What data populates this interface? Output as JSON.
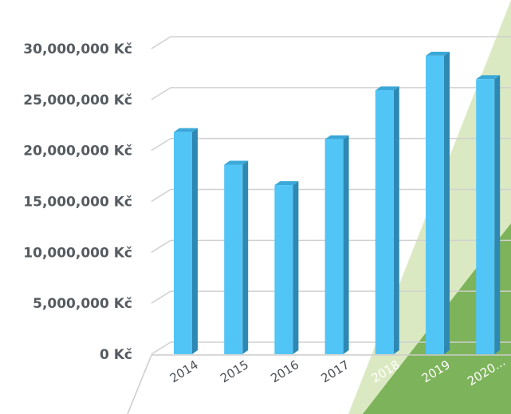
{
  "chart_data": {
    "type": "bar",
    "title": "",
    "xlabel": "",
    "ylabel": "",
    "categories": [
      "2014",
      "2015",
      "2016",
      "2017",
      "2018",
      "2019",
      "2020..."
    ],
    "values": [
      21800000,
      18600000,
      16600000,
      21100000,
      25900000,
      29300000,
      27000000
    ],
    "ylim": [
      0,
      30000000
    ],
    "yticks": [
      0,
      5000000,
      10000000,
      15000000,
      20000000,
      25000000,
      30000000
    ],
    "ytick_labels": [
      "0 Kč",
      "5,000,000 Kč",
      "10,000,000 Kč",
      "15,000,000 Kč",
      "20,000,000 Kč",
      "25,000,000 Kč",
      "30,000,000 Kč"
    ],
    "legend": "none",
    "grid": true,
    "style": "3d-column",
    "colors": {
      "bar_front": "#52c5f7",
      "bar_side": "#2d89b3",
      "bar_top": "#3aa8d8",
      "grid": "#d0d0d0",
      "decor_light": "#dbe9c2",
      "decor_dark": "#7db35a",
      "tick_text": "#555b60"
    }
  }
}
